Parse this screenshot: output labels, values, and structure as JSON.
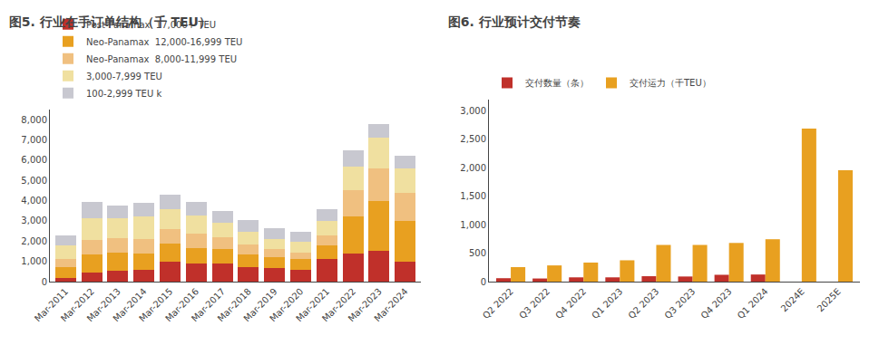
{
  "chart_data": [
    {
      "type": "bar",
      "title": "图5. 行业在手订单结构（千 TEU）",
      "categories": [
        "Mar-2011",
        "Mar-2012",
        "Mar-2013",
        "Mar-2014",
        "Mar-2015",
        "Mar-2016",
        "Mar-2017",
        "Mar-2018",
        "Mar-2019",
        "Mar-2020",
        "Mar-2021",
        "Mar-2022",
        "Mar-2023",
        "Mar-2024"
      ],
      "series": [
        {
          "name": "Post-Panamax  17,000+ TEU",
          "color": "#C0302A",
          "values": [
            200,
            450,
            550,
            600,
            1000,
            900,
            900,
            700,
            650,
            600,
            1100,
            1400,
            1500,
            1000
          ]
        },
        {
          "name": "Neo-Panamax  12,000-16,999 TEU",
          "color": "#E8A020",
          "values": [
            500,
            900,
            900,
            800,
            900,
            750,
            700,
            650,
            550,
            500,
            700,
            1800,
            2500,
            2000
          ]
        },
        {
          "name": "Neo-Panamax  8,000-11,999 TEU",
          "color": "#F0C080",
          "values": [
            400,
            700,
            700,
            700,
            700,
            700,
            600,
            500,
            400,
            350,
            500,
            1300,
            1600,
            1400
          ]
        },
        {
          "name": "3,000-7,999 TEU",
          "color": "#F0E0A0",
          "values": [
            700,
            1100,
            1000,
            1100,
            1000,
            900,
            700,
            600,
            500,
            500,
            700,
            1200,
            1500,
            1200
          ]
        },
        {
          "name": "100-2,999 TEU k",
          "color": "#C8C8D0",
          "values": [
            500,
            800,
            600,
            700,
            700,
            700,
            600,
            600,
            550,
            500,
            600,
            800,
            700,
            600
          ]
        }
      ],
      "stacked": true,
      "ylim": [
        0,
        8500
      ],
      "yticks": [
        0,
        {
          "value": 1000,
          "label": "1,000"
        },
        {
          "value": 2000,
          "label": "2,000"
        },
        {
          "value": 3000,
          "label": "3,000"
        },
        {
          "value": 4000,
          "label": "4,000"
        },
        {
          "value": 5000,
          "label": "5,000"
        },
        {
          "value": 6000,
          "label": "6,000"
        },
        {
          "value": 7000,
          "label": "7,000"
        },
        {
          "value": 8000,
          "label": "8,000"
        }
      ],
      "grid": false,
      "legend": "top"
    },
    {
      "type": "bar",
      "title": "图6. 行业预计交付节奏",
      "categories": [
        "Q2 2022",
        "Q3 2022",
        "Q4 2022",
        "Q1 2023",
        "Q2 2023",
        "Q3 2023",
        "Q4 2023",
        "Q1 2024",
        "2024E",
        "2025E"
      ],
      "series": [
        {
          "name": "交付数量（条）",
          "color": "#C0302A",
          "values": [
            60,
            55,
            75,
            75,
            95,
            90,
            120,
            125,
            0,
            0
          ]
        },
        {
          "name": "交付运力（千TEU）",
          "color": "#E8A020",
          "values": [
            255,
            285,
            335,
            375,
            645,
            645,
            680,
            745,
            2690,
            1960
          ]
        }
      ],
      "stacked": false,
      "ylim": [
        0,
        3200
      ],
      "yticks": [
        0,
        500,
        {
          "value": 1000,
          "label": "1,000"
        },
        {
          "value": 1500,
          "label": "1,500"
        },
        {
          "value": 2000,
          "label": "2,000"
        },
        {
          "value": 2500,
          "label": "2,500"
        },
        {
          "value": 3000,
          "label": "3,000"
        }
      ],
      "grid": false,
      "legend": "top"
    }
  ]
}
